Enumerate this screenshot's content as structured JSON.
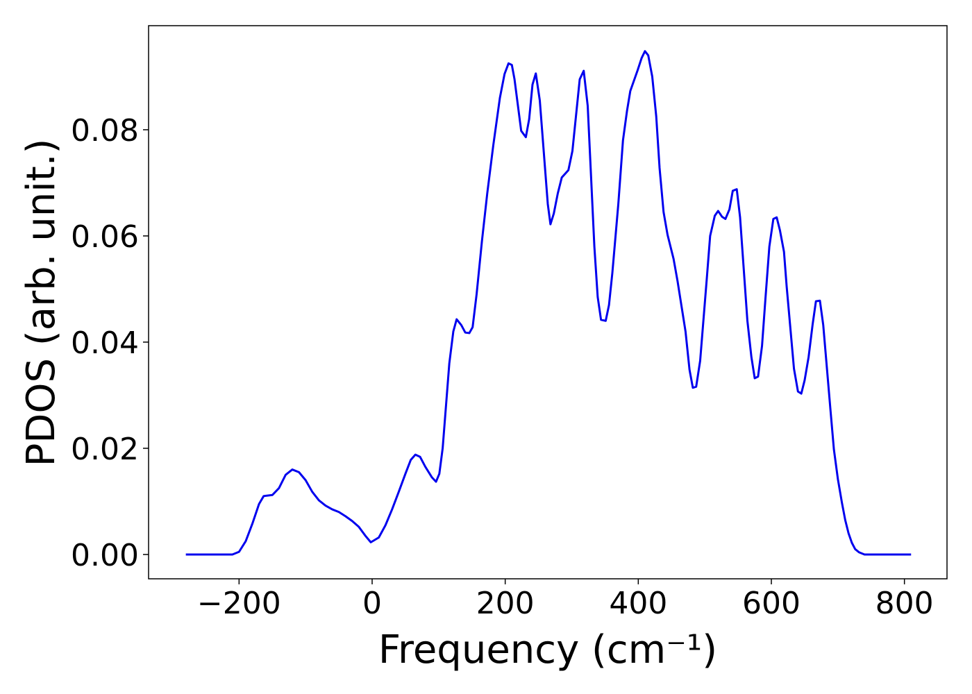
{
  "chart_data": {
    "type": "line",
    "xlabel": "Frequency (cm⁻¹)",
    "ylabel": "PDOS (arb. unit.)",
    "xlim": [
      -336,
      864
    ],
    "ylim": [
      -0.00458,
      0.0996
    ],
    "xticks": [
      {
        "value": -200,
        "label": "−200"
      },
      0,
      200,
      400,
      600,
      800
    ],
    "yticks": [
      {
        "value": 0,
        "label": "0.00"
      },
      {
        "value": 0.02,
        "label": "0.02"
      },
      {
        "value": 0.04,
        "label": "0.04"
      },
      {
        "value": 0.06,
        "label": "0.06"
      },
      {
        "value": 0.08,
        "label": "0.08"
      }
    ],
    "series": [
      {
        "color": "#0000ee",
        "x": [
          -280,
          -210,
          -200,
          -190,
          -180,
          -170,
          -163,
          -150,
          -140,
          -130,
          -120,
          -110,
          -100,
          -90,
          -80,
          -70,
          -60,
          -50,
          -40,
          -30,
          -20,
          -10,
          -2,
          10,
          20,
          30,
          40,
          50,
          58,
          65,
          72,
          80,
          90,
          96,
          101,
          106,
          116,
          122,
          127,
          134,
          140,
          146,
          151,
          157,
          165,
          173,
          182,
          192,
          199,
          205,
          210,
          214,
          224,
          231,
          236,
          241,
          246,
          252,
          264,
          268,
          273,
          279,
          285,
          295,
          301,
          312,
          318,
          324,
          334,
          339,
          344,
          351,
          356,
          361,
          370,
          377,
          383,
          388,
          399,
          405,
          410,
          415,
          421,
          427,
          432,
          438,
          444,
          453,
          459,
          471,
          477,
          482,
          487,
          493,
          503,
          508,
          515,
          520,
          526,
          531,
          537,
          542,
          548,
          553,
          564,
          570,
          575,
          580,
          586,
          591,
          597,
          603,
          608,
          613,
          619,
          623,
          634,
          640,
          645,
          650,
          656,
          662,
          667,
          673,
          678,
          689,
          694,
          700,
          706,
          711,
          716,
          721,
          726,
          732,
          740,
          810
        ],
        "values": [
          0,
          0,
          0.0005,
          0.0025,
          0.0058,
          0.0095,
          0.011,
          0.0112,
          0.0125,
          0.015,
          0.016,
          0.0155,
          0.014,
          0.0118,
          0.0102,
          0.0092,
          0.0085,
          0.008,
          0.0072,
          0.0063,
          0.0052,
          0.0035,
          0.0023,
          0.0032,
          0.0055,
          0.0085,
          0.0118,
          0.0152,
          0.0178,
          0.0188,
          0.0184,
          0.0165,
          0.0145,
          0.0137,
          0.0152,
          0.02,
          0.036,
          0.042,
          0.0443,
          0.0432,
          0.0418,
          0.0417,
          0.0428,
          0.049,
          0.059,
          0.068,
          0.077,
          0.086,
          0.0905,
          0.0925,
          0.0922,
          0.0895,
          0.0798,
          0.0786,
          0.082,
          0.0885,
          0.0906,
          0.0855,
          0.066,
          0.0622,
          0.0642,
          0.068,
          0.071,
          0.0724,
          0.076,
          0.0895,
          0.0911,
          0.0845,
          0.058,
          0.0485,
          0.0442,
          0.044,
          0.047,
          0.053,
          0.066,
          0.078,
          0.0835,
          0.0873,
          0.0912,
          0.0935,
          0.0948,
          0.094,
          0.09,
          0.0825,
          0.0728,
          0.0645,
          0.0602,
          0.0557,
          0.0515,
          0.042,
          0.0348,
          0.0314,
          0.0316,
          0.0365,
          0.052,
          0.06,
          0.0638,
          0.0647,
          0.0636,
          0.0632,
          0.065,
          0.0685,
          0.0688,
          0.0635,
          0.044,
          0.0372,
          0.0332,
          0.0335,
          0.0393,
          0.048,
          0.058,
          0.0632,
          0.0635,
          0.061,
          0.057,
          0.0505,
          0.035,
          0.0307,
          0.0303,
          0.0328,
          0.0372,
          0.0433,
          0.0477,
          0.0478,
          0.0432,
          0.027,
          0.0198,
          0.0142,
          0.0098,
          0.0065,
          0.004,
          0.0022,
          0.001,
          0.0004,
          0,
          0
        ]
      }
    ]
  }
}
